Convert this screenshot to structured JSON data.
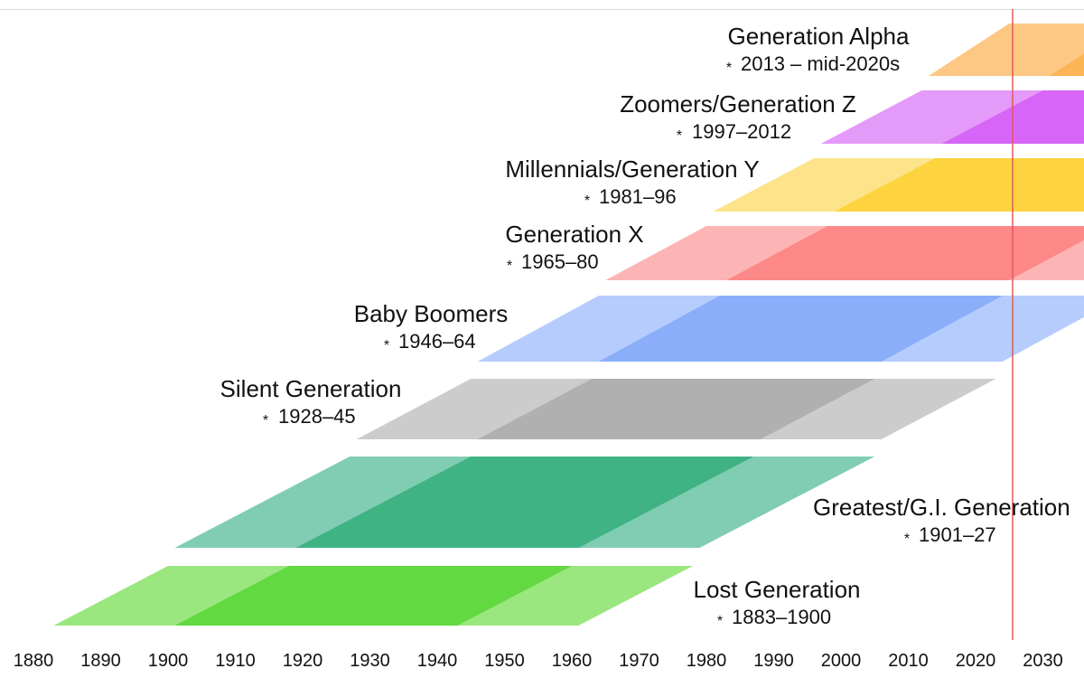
{
  "chart_data": {
    "type": "timeline",
    "title": "",
    "xlabel": "",
    "ylabel": "",
    "xlim": [
      1875,
      2037
    ],
    "x_ticks": [
      1880,
      1890,
      1900,
      1910,
      1920,
      1930,
      1940,
      1950,
      1960,
      1970,
      1980,
      1990,
      2000,
      2010,
      2020,
      2030
    ],
    "marker_line": {
      "year": 2025.5,
      "color": "#e45a5a"
    },
    "series": [
      {
        "name": "Lost Generation",
        "years_label": "1883–1900",
        "start": 1883,
        "end": 1900,
        "colors": {
          "light": "#9ae67f",
          "dark": "#62d940"
        }
      },
      {
        "name": "Greatest/G.I. Generation",
        "years_label": "1901–27",
        "start": 1901,
        "end": 1927,
        "colors": {
          "light": "#81cdb3",
          "dark": "#3fb383"
        }
      },
      {
        "name": "Silent Generation",
        "years_label": "1928–45",
        "start": 1928,
        "end": 1945,
        "colors": {
          "light": "#cccccc",
          "dark": "#b0b0b0"
        }
      },
      {
        "name": "Baby Boomers",
        "years_label": "1946–64",
        "start": 1946,
        "end": 1964,
        "colors": {
          "light": "#b5ccfd",
          "dark": "#8aaefa"
        }
      },
      {
        "name": "Generation X",
        "years_label": "1965–80",
        "start": 1965,
        "end": 1980,
        "colors": {
          "light": "#fdb4b4",
          "dark": "#fd8888"
        }
      },
      {
        "name": "Millennials/Generation Y",
        "years_label": "1981–96",
        "start": 1981,
        "end": 1996,
        "colors": {
          "light": "#fde48a",
          "dark": "#fdd43f"
        }
      },
      {
        "name": "Zoomers/Generation Z",
        "years_label": "1997–2012",
        "start": 1997,
        "end": 2012,
        "colors": {
          "light": "#e49af9",
          "dark": "#d765f7"
        }
      },
      {
        "name": "Generation Alpha",
        "years_label": "2013 – mid-2020s",
        "start": 2013,
        "end": 2025,
        "colors": {
          "light": "#fdc883",
          "dark": "#fdb455"
        }
      }
    ]
  }
}
